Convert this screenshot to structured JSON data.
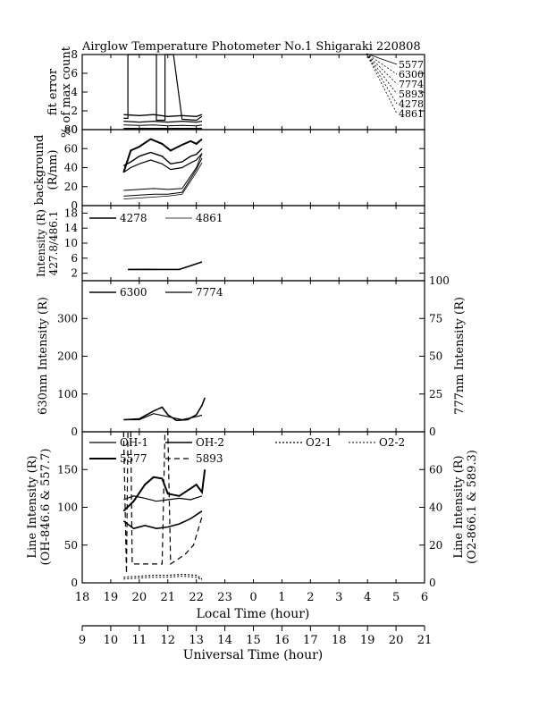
{
  "title": "Airglow Temperature Photometer No.1  Shigaraki  220808",
  "colors": {
    "ink": "#000000",
    "background": "#ffffff"
  },
  "x_axes": {
    "local": {
      "label": "Local Time (hour)",
      "ticks": [
        "18",
        "19",
        "20",
        "21",
        "22",
        "23",
        "0",
        "1",
        "2",
        "3",
        "4",
        "5",
        "6"
      ]
    },
    "universal": {
      "label": "Universal Time (hour)",
      "ticks": [
        "9",
        "10",
        "11",
        "12",
        "13",
        "14",
        "15",
        "16",
        "17",
        "18",
        "19",
        "20",
        "21"
      ]
    }
  },
  "panels": {
    "fit": {
      "ylabel_1": "fit error",
      "ylabel_2": "% of max count",
      "yticks": [
        "0",
        "2",
        "4",
        "6",
        "8"
      ],
      "legend": [
        "5577",
        "6300",
        "7774",
        "5893",
        "4278",
        "4861"
      ]
    },
    "bg": {
      "ylabel_1": "background",
      "ylabel_2": "(R/nm)",
      "yticks": [
        "0",
        "20",
        "40",
        "60",
        "80"
      ]
    },
    "blue": {
      "ylabel_1": "Intensity (R)",
      "ylabel_2": "427.8/486.1",
      "yticks": [
        "2",
        "6",
        "10",
        "14",
        "18"
      ],
      "legend": [
        "4278",
        "4861"
      ]
    },
    "red": {
      "ylabel_left": "630nm Intensity (R)",
      "ylabel_right": "777nm Intensity (R)",
      "yticks_left": [
        "0",
        "100",
        "200",
        "300"
      ],
      "yticks_right": [
        "0",
        "25",
        "50",
        "75",
        "100"
      ],
      "legend": [
        "6300",
        "7774"
      ]
    },
    "line": {
      "ylabel_left_1": "Line Intensity (R)",
      "ylabel_left_2": "(OH-846.6 & 557.7)",
      "ylabel_right_1": "Line Intensity (R)",
      "ylabel_right_2": "(O2-866.1 & 589.3)",
      "yticks_left": [
        "0",
        "50",
        "100",
        "150"
      ],
      "yticks_right": [
        "0",
        "20",
        "40",
        "60"
      ],
      "legend": [
        "OH-1",
        "OH-2",
        "O2-1",
        "O2-2",
        "5577",
        "5893"
      ]
    }
  },
  "chart_data": [
    {
      "type": "line",
      "title": "Airglow Temperature Photometer No.1  Shigaraki  220808",
      "ylabel": "fit error % of max count",
      "xlabel": "",
      "xlim": [
        18,
        30
      ],
      "ylim": [
        0,
        8
      ],
      "grid": false,
      "legend_position": "right",
      "series": [
        {
          "name": "5577",
          "dash": "solid",
          "width": 1.2,
          "x": [
            19.45,
            19.6,
            19.6,
            20.6,
            20.6,
            20.9,
            20.9,
            21.2,
            21.5,
            22.0,
            22.2
          ],
          "y": [
            1.2,
            1.2,
            8,
            8,
            1.0,
            1.0,
            8,
            8,
            1.1,
            1.0,
            1.4
          ]
        },
        {
          "name": "6300",
          "dash": "solid",
          "width": 1.4,
          "x": [
            19.45,
            20.0,
            20.5,
            21.0,
            21.5,
            22.0,
            22.2
          ],
          "y": [
            1.6,
            1.5,
            1.6,
            1.4,
            1.5,
            1.4,
            1.6
          ]
        },
        {
          "name": "7774",
          "dash": "solid",
          "width": 1.2,
          "x": [
            19.45,
            20.0,
            20.5,
            21.0,
            21.5,
            22.0,
            22.2
          ],
          "y": [
            0.9,
            0.8,
            0.9,
            0.8,
            0.9,
            0.8,
            0.9
          ]
        },
        {
          "name": "5893",
          "dash": "solid",
          "width": 1,
          "x": [
            19.45,
            20.0,
            20.5,
            21.0,
            21.5,
            22.0,
            22.2
          ],
          "y": [
            0.5,
            0.45,
            0.5,
            0.4,
            0.45,
            0.4,
            0.5
          ]
        },
        {
          "name": "4278",
          "dash": "solid",
          "width": 1,
          "x": [
            19.45,
            20.5,
            21.5,
            22.2
          ],
          "y": [
            0.1,
            0.1,
            0.1,
            0.1
          ]
        },
        {
          "name": "4861",
          "dash": "solid",
          "width": 0.8,
          "x": [
            19.45,
            20.5,
            21.5,
            22.2
          ],
          "y": [
            0.15,
            0.15,
            0.15,
            0.15
          ]
        }
      ]
    },
    {
      "type": "line",
      "ylabel": "background (R/nm)",
      "xlabel": "",
      "xlim": [
        18,
        30
      ],
      "ylim": [
        0,
        80
      ],
      "grid": false,
      "series": [
        {
          "name": "5577",
          "dash": "solid",
          "width": 2,
          "x": [
            19.45,
            19.7,
            20.0,
            20.4,
            20.8,
            21.1,
            21.5,
            21.8,
            22.0,
            22.2
          ],
          "y": [
            35,
            58,
            62,
            70,
            65,
            58,
            64,
            68,
            65,
            70
          ]
        },
        {
          "name": "6300",
          "dash": "solid",
          "width": 1.4,
          "x": [
            19.45,
            19.7,
            20.0,
            20.4,
            20.8,
            21.1,
            21.5,
            21.8,
            22.0,
            22.2
          ],
          "y": [
            42,
            46,
            52,
            56,
            52,
            44,
            46,
            52,
            54,
            60
          ]
        },
        {
          "name": "7774",
          "dash": "solid",
          "width": 1.2,
          "x": [
            19.45,
            19.7,
            20.0,
            20.4,
            20.8,
            21.1,
            21.5,
            21.8,
            22.0,
            22.2
          ],
          "y": [
            35,
            40,
            44,
            48,
            44,
            38,
            40,
            45,
            48,
            55
          ]
        },
        {
          "name": "5893",
          "dash": "solid",
          "width": 1,
          "x": [
            19.45,
            20.0,
            20.5,
            21.0,
            21.5,
            22.0,
            22.2
          ],
          "y": [
            16,
            17,
            18,
            17,
            18,
            40,
            55
          ]
        },
        {
          "name": "4278",
          "dash": "solid",
          "width": 1,
          "x": [
            19.45,
            20.0,
            20.5,
            21.0,
            21.5,
            22.0,
            22.2
          ],
          "y": [
            10,
            11,
            12,
            12,
            14,
            38,
            50
          ]
        },
        {
          "name": "4861",
          "dash": "solid",
          "width": 0.8,
          "x": [
            19.45,
            20.0,
            20.5,
            21.0,
            21.5,
            22.0,
            22.2
          ],
          "y": [
            7,
            8,
            9,
            10,
            12,
            35,
            45
          ]
        }
      ]
    },
    {
      "type": "line",
      "ylabel": "Intensity (R) 427.8/486.1",
      "xlabel": "",
      "xlim": [
        18,
        30
      ],
      "ylim": [
        0,
        20
      ],
      "grid": false,
      "legend_position": "top-left",
      "series": [
        {
          "name": "4278",
          "dash": "solid",
          "width": 1.6,
          "x": [
            19.6,
            20.2,
            20.8,
            21.4,
            21.8,
            22.2
          ],
          "y": [
            3,
            3,
            3,
            3,
            4,
            5
          ]
        },
        {
          "name": "4861",
          "dash": "solid",
          "width": 0.8,
          "x": [
            19.6,
            20.2,
            20.8,
            21.4,
            21.8,
            22.2
          ],
          "y": [
            3,
            3.1,
            3,
            3,
            4,
            5
          ]
        }
      ]
    },
    {
      "type": "line",
      "ylabel": "630nm Intensity (R)",
      "y2label": "777nm Intensity (R)",
      "xlabel": "",
      "xlim": [
        18,
        30
      ],
      "ylim": [
        0,
        400
      ],
      "y2lim": [
        0,
        100
      ],
      "grid": false,
      "legend_position": "top-left",
      "series": [
        {
          "name": "6300",
          "dash": "solid",
          "width": 1.6,
          "axis": "left",
          "x": [
            19.45,
            20.0,
            20.5,
            20.8,
            21.0,
            21.3,
            21.7,
            22.0,
            22.2,
            22.3
          ],
          "y": [
            32,
            34,
            55,
            65,
            45,
            30,
            32,
            45,
            70,
            90
          ]
        },
        {
          "name": "7774",
          "dash": "solid",
          "width": 1.2,
          "axis": "right",
          "x": [
            19.45,
            20.0,
            20.5,
            21.0,
            21.5,
            22.0,
            22.2
          ],
          "y": [
            8,
            8,
            12,
            10,
            8,
            10,
            11
          ]
        }
      ]
    },
    {
      "type": "line",
      "ylabel": "Line Intensity (R) (OH-846.6 & 557.7)",
      "y2label": "Line Intensity (R) (O2-866.1 & 589.3)",
      "xlabel": "Local Time (hour)",
      "xlim": [
        18,
        30
      ],
      "ylim": [
        0,
        200
      ],
      "y2lim": [
        0,
        80
      ],
      "grid": false,
      "legend_position": "top",
      "series": [
        {
          "name": "OH-1",
          "dash": "solid",
          "width": 1.2,
          "axis": "left",
          "x": [
            19.45,
            19.8,
            20.2,
            20.6,
            21.0,
            21.4,
            21.8,
            22.2
          ],
          "y": [
            110,
            115,
            112,
            108,
            110,
            112,
            110,
            115
          ]
        },
        {
          "name": "OH-2",
          "dash": "solid",
          "width": 1.6,
          "axis": "left",
          "x": [
            19.45,
            19.8,
            20.2,
            20.6,
            21.0,
            21.4,
            21.8,
            22.2
          ],
          "y": [
            82,
            72,
            76,
            72,
            74,
            78,
            85,
            95
          ]
        },
        {
          "name": "O2-1",
          "dash": "dot",
          "width": 1.2,
          "axis": "right",
          "x": [
            19.45,
            20.0,
            20.5,
            21.0,
            21.5,
            22.0,
            22.2
          ],
          "y": [
            3,
            3.5,
            4,
            4,
            4.5,
            4,
            2
          ]
        },
        {
          "name": "O2-2",
          "dash": "dot",
          "width": 1,
          "axis": "right",
          "x": [
            19.45,
            20.0,
            20.5,
            21.0,
            21.5,
            22.0,
            22.2
          ],
          "y": [
            2,
            2.5,
            3,
            3,
            3.5,
            3,
            1.5
          ]
        },
        {
          "name": "5577",
          "dash": "solid",
          "width": 2,
          "axis": "left",
          "x": [
            19.45,
            19.8,
            20.2,
            20.5,
            20.8,
            21.0,
            21.4,
            21.8,
            22.0,
            22.2,
            22.3
          ],
          "y": [
            95,
            108,
            130,
            140,
            138,
            118,
            115,
            125,
            130,
            120,
            150
          ]
        },
        {
          "name": "5893",
          "dash": "dash",
          "width": 1.2,
          "axis": "right",
          "x": [
            19.45,
            19.55,
            19.6,
            19.7,
            19.75,
            20.8,
            20.9,
            21.0,
            21.1,
            21.3,
            21.6,
            21.9,
            22.2
          ],
          "y": [
            80,
            5,
            80,
            80,
            10,
            10,
            80,
            80,
            10,
            12,
            15,
            20,
            35
          ]
        }
      ]
    }
  ]
}
